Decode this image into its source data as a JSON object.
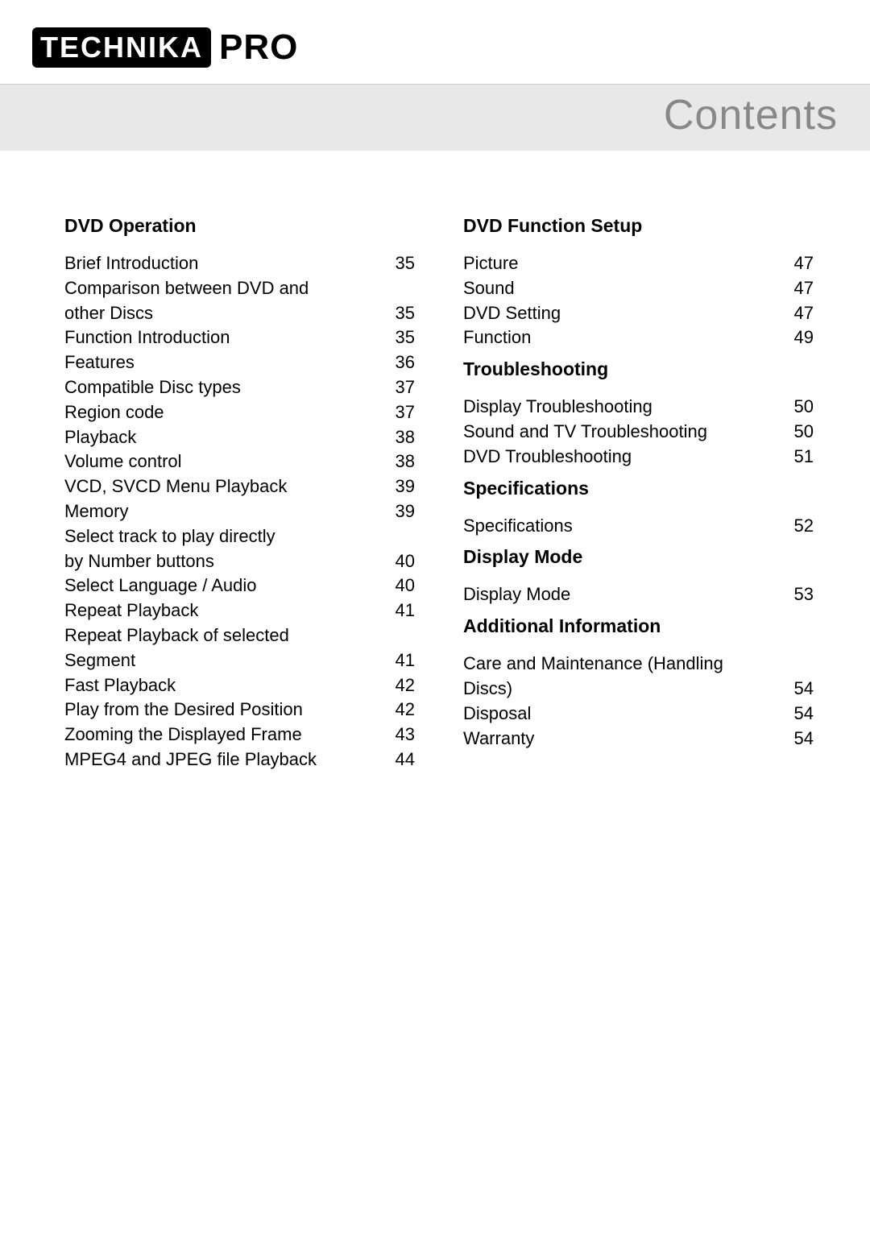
{
  "brand": {
    "badge": "TECHNIKA",
    "suffix": "PRO"
  },
  "page_title": "Contents",
  "colors": {
    "title_text": "#888888",
    "title_bg": "#e8e8e8",
    "body_text": "#000000",
    "page_bg": "#ffffff"
  },
  "left_sections": [
    {
      "heading": "DVD Operation",
      "items": [
        {
          "label": "Brief Introduction",
          "page": "35"
        },
        {
          "label": "Comparison between DVD and other Discs",
          "page": "35"
        },
        {
          "label": "Function Introduction",
          "page": "35"
        },
        {
          "label": "Features",
          "page": "36"
        },
        {
          "label": "Compatible Disc types",
          "page": "37"
        },
        {
          "label": "Region code",
          "page": "37"
        },
        {
          "label": "Playback",
          "page": "38"
        },
        {
          "label": "Volume control",
          "page": "38"
        },
        {
          "label": "VCD, SVCD Menu Playback",
          "page": "39"
        },
        {
          "label": "Memory",
          "page": "39"
        },
        {
          "label": "Select track to play directly by Number buttons",
          "page": "40"
        },
        {
          "label": "Select Language / Audio",
          "page": "40"
        },
        {
          "label": "Repeat Playback",
          "page": "41"
        },
        {
          "label": "Repeat Playback of selected Segment",
          "page": "41"
        },
        {
          "label": "Fast Playback",
          "page": "42"
        },
        {
          "label": "Play from the Desired Position",
          "page": "42"
        },
        {
          "label": "Zooming the Displayed Frame",
          "page": "43"
        },
        {
          "label": "MPEG4 and JPEG file Playback",
          "page": "44"
        }
      ]
    }
  ],
  "right_sections": [
    {
      "heading": "DVD Function Setup",
      "items": [
        {
          "label": "Picture",
          "page": "47"
        },
        {
          "label": "Sound",
          "page": "47"
        },
        {
          "label": "DVD Setting",
          "page": "47"
        },
        {
          "label": "Function",
          "page": "49"
        }
      ]
    },
    {
      "heading": "Troubleshooting",
      "items": [
        {
          "label": "Display Troubleshooting",
          "page": "50"
        },
        {
          "label": "Sound and TV Troubleshooting",
          "page": "50"
        },
        {
          "label": "DVD Troubleshooting",
          "page": "51"
        }
      ]
    },
    {
      "heading": "Specifications",
      "items": [
        {
          "label": "Specifications",
          "page": "52"
        }
      ]
    },
    {
      "heading": "Display Mode",
      "items": [
        {
          "label": "Display Mode",
          "page": "53"
        }
      ]
    },
    {
      "heading": "Additional Information",
      "items": [
        {
          "label": "Care and Maintenance (Handling Discs)",
          "page": "54"
        },
        {
          "label": "Disposal",
          "page": "54"
        },
        {
          "label": "Warranty",
          "page": "54"
        }
      ]
    }
  ]
}
